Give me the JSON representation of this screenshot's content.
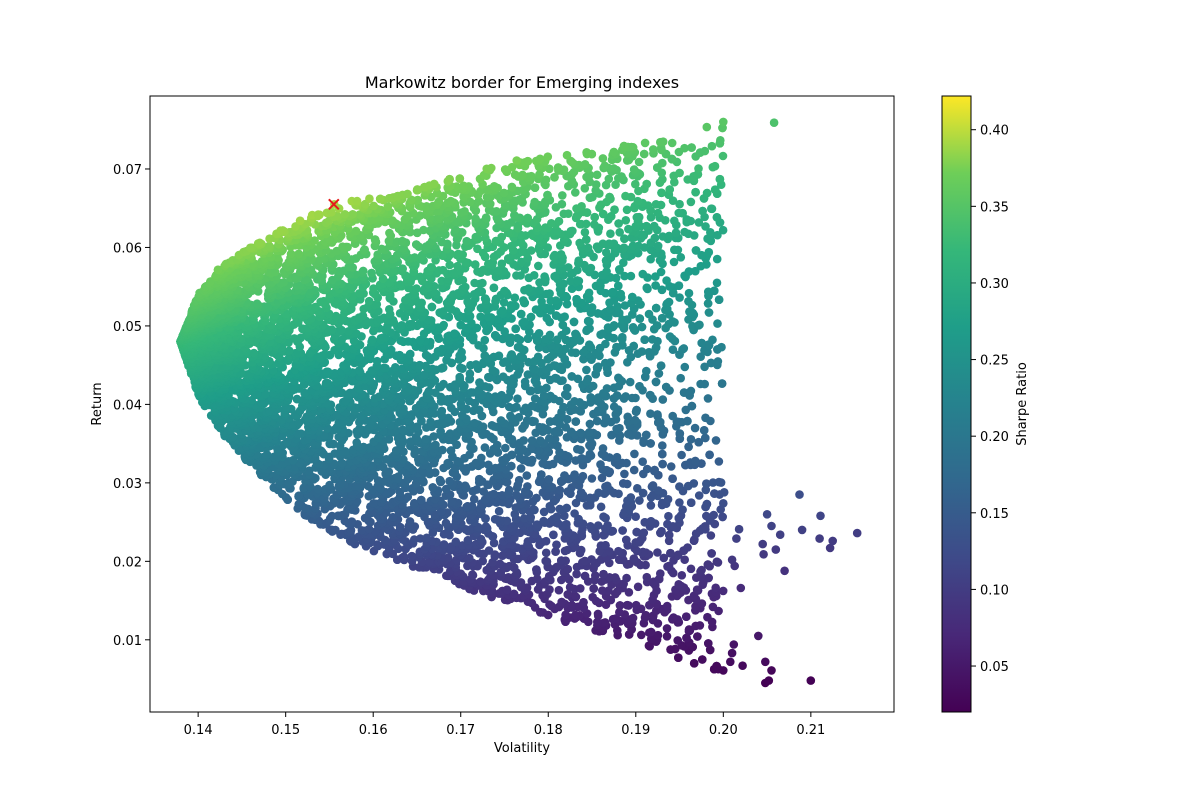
{
  "chart_data": {
    "type": "scatter",
    "title": "Markowitz border for Emerging indexes",
    "xlabel": "Volatility",
    "ylabel": "Return",
    "xlim": [
      0.1345,
      0.2195
    ],
    "ylim": [
      0.0008,
      0.0793
    ],
    "xticks": [
      "0.14",
      "0.15",
      "0.16",
      "0.17",
      "0.18",
      "0.19",
      "0.20",
      "0.21"
    ],
    "yticks": [
      "0.01",
      "0.02",
      "0.03",
      "0.04",
      "0.05",
      "0.06",
      "0.07"
    ],
    "colorbar": {
      "label": "Sharpe Ratio",
      "range": [
        0.02,
        0.422
      ],
      "ticks": [
        "0.05",
        "0.10",
        "0.15",
        "0.20",
        "0.25",
        "0.30",
        "0.35",
        "0.40"
      ],
      "colormap": "viridis"
    },
    "point_count": 10000,
    "min_volatility_portfolio": {
      "volatility": 0.138,
      "return": 0.048
    },
    "frontier_upper": [
      [
        0.138,
        0.048
      ],
      [
        0.14,
        0.054
      ],
      [
        0.1425,
        0.0575
      ],
      [
        0.146,
        0.06
      ],
      [
        0.15,
        0.0625
      ],
      [
        0.1555,
        0.0655
      ],
      [
        0.16,
        0.0665
      ],
      [
        0.165,
        0.0675
      ],
      [
        0.172,
        0.07
      ],
      [
        0.178,
        0.0715
      ],
      [
        0.185,
        0.0725
      ],
      [
        0.192,
        0.0735
      ],
      [
        0.2,
        0.076
      ],
      [
        0.2058,
        0.0759
      ]
    ],
    "frontier_lower": [
      [
        0.138,
        0.048
      ],
      [
        0.14,
        0.041
      ],
      [
        0.143,
        0.036
      ],
      [
        0.147,
        0.031
      ],
      [
        0.152,
        0.026
      ],
      [
        0.158,
        0.022
      ],
      [
        0.165,
        0.019
      ],
      [
        0.172,
        0.016
      ],
      [
        0.18,
        0.013
      ],
      [
        0.188,
        0.01
      ],
      [
        0.196,
        0.007
      ],
      [
        0.204,
        0.0045
      ],
      [
        0.21,
        0.0048
      ]
    ],
    "outliers": [
      [
        0.2153,
        0.0236
      ],
      [
        0.2125,
        0.0226
      ],
      [
        0.2122,
        0.0217
      ],
      [
        0.2111,
        0.0258
      ],
      [
        0.211,
        0.0229
      ],
      [
        0.2087,
        0.0285
      ],
      [
        0.209,
        0.024
      ],
      [
        0.207,
        0.0188
      ],
      [
        0.2065,
        0.0234
      ],
      [
        0.206,
        0.0215
      ],
      [
        0.2055,
        0.0245
      ],
      [
        0.205,
        0.026
      ],
      [
        0.2046,
        0.0209
      ],
      [
        0.2045,
        0.0222
      ],
      [
        0.204,
        0.0105
      ],
      [
        0.2048,
        0.0072
      ],
      [
        0.2055,
        0.0061
      ],
      [
        0.2052,
        0.0048
      ],
      [
        0.2048,
        0.0045
      ],
      [
        0.21,
        0.0048
      ],
      [
        0.2018,
        0.0241
      ],
      [
        0.2015,
        0.0229
      ],
      [
        0.201,
        0.0202
      ],
      [
        0.2013,
        0.0194
      ],
      [
        0.202,
        0.0166
      ],
      [
        0.2012,
        0.0094
      ],
      [
        0.201,
        0.0083
      ],
      [
        0.2008,
        0.0072
      ],
      [
        0.2,
        0.0061
      ],
      [
        0.2022,
        0.0067
      ],
      [
        0.2001,
        0.0288
      ],
      [
        0.2,
        0.0274
      ],
      [
        0.1997,
        0.0266
      ],
      [
        0.1995,
        0.0301
      ],
      [
        0.1989,
        0.0259
      ],
      [
        0.1968,
        0.0328
      ],
      [
        0.198,
        0.0291
      ],
      [
        0.2058,
        0.0759
      ],
      [
        0.2,
        0.076
      ],
      [
        0.1987,
        0.0729
      ],
      [
        0.1967,
        0.069
      ],
      [
        0.1963,
        0.0658
      ],
      [
        0.1944,
        0.0634
      ],
      [
        0.1947,
        0.0709
      ],
      [
        0.195,
        0.0695
      ],
      [
        0.1929,
        0.0727
      ],
      [
        0.192,
        0.0725
      ],
      [
        0.1917,
        0.0585
      ],
      [
        0.191,
        0.06
      ],
      [
        0.1908,
        0.0566
      ],
      [
        0.1895,
        0.0728
      ],
      [
        0.189,
        0.072
      ],
      [
        0.188,
        0.0688
      ],
      [
        0.189,
        0.0648
      ]
    ],
    "optimal_portfolio": {
      "volatility": 0.1555,
      "return": 0.0655,
      "color": "#e41a1c"
    }
  }
}
